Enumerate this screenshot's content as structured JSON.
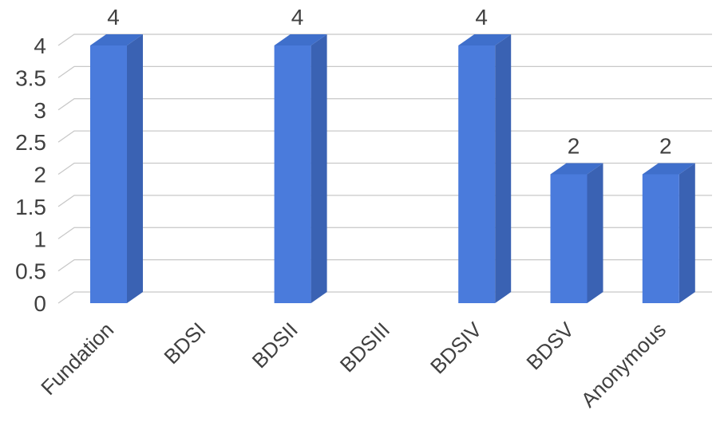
{
  "chart_data": {
    "type": "bar",
    "style": "3d-column",
    "title": "",
    "xlabel": "",
    "ylabel": "",
    "categories": [
      "Fundation",
      "BDSI",
      "BDSII",
      "BDSIII",
      "BDSIV",
      "BDSV",
      "Anonymous"
    ],
    "values": [
      4,
      0,
      4,
      0,
      4,
      2,
      2
    ],
    "data_labels": [
      "4",
      "",
      "4",
      "",
      "4",
      "2",
      "2"
    ],
    "ylim": [
      0,
      4
    ],
    "yticks": [
      "0",
      "0.5",
      "1",
      "1.5",
      "2",
      "2.5",
      "3",
      "3.5",
      "4"
    ],
    "grid": true,
    "legend": "none",
    "colors": {
      "bar_front": "#4a7bdc",
      "bar_side": "#3a62b3",
      "bar_top": "#3f6fcb",
      "grid": "#c8c8c8",
      "text": "#404040"
    }
  }
}
